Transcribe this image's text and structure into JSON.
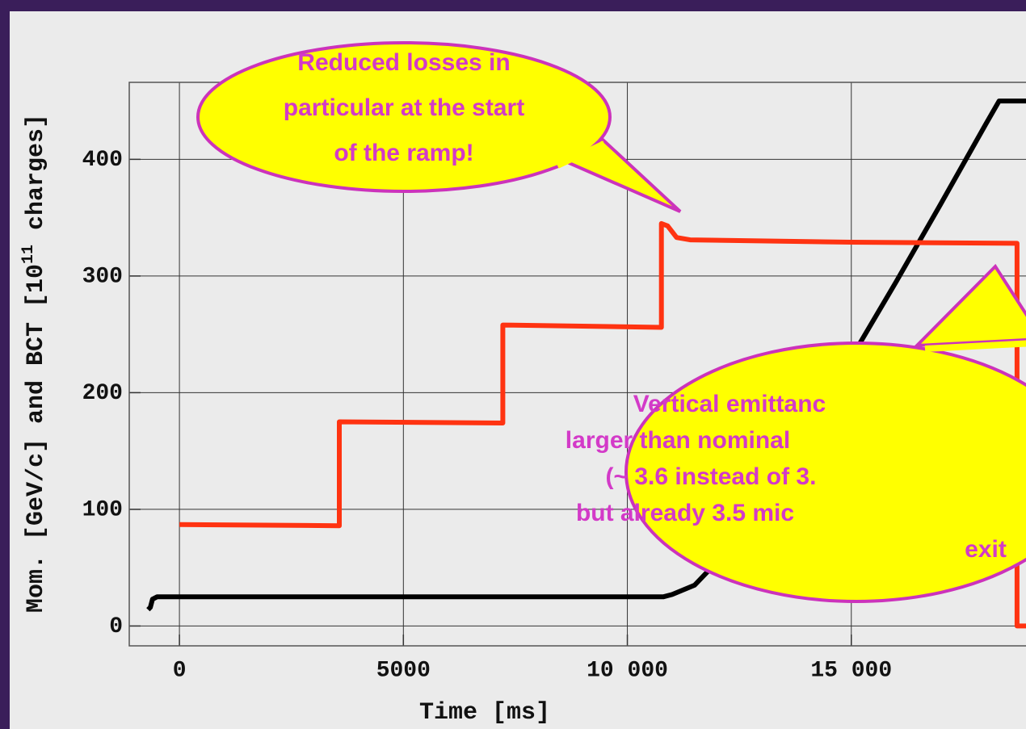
{
  "chart_data": {
    "type": "line",
    "xlabel": "Time  [ms]",
    "ylabel": [
      "Mom.  [GeV/c]  and  BCT  [10",
      "11",
      "  charges]"
    ],
    "xlim": [
      -1120,
      18900
    ],
    "ylim": [
      -17,
      466
    ],
    "xticks": [
      0,
      5000,
      {
        "value": 10000,
        "label": "10 000"
      },
      {
        "value": 15000,
        "label": "15 000"
      }
    ],
    "yticks": [
      0,
      100,
      200,
      300,
      400
    ],
    "grid": true,
    "series": [
      {
        "color": "#000000",
        "x": [
          -700,
          -650,
          -600,
          -500,
          0,
          5000,
          10000,
          10800,
          11000,
          11500,
          12000,
          12500,
          13000,
          14000,
          15000,
          16000,
          17000,
          18000,
          18300,
          18900
        ],
        "values": [
          14,
          16,
          23,
          25,
          25,
          25,
          25,
          25,
          27,
          35,
          55,
          90,
          120,
          175,
          230,
          295,
          362,
          430,
          450,
          450
        ]
      },
      {
        "color": "#ff3311",
        "x": [
          0,
          3570,
          3570,
          7220,
          7220,
          10760,
          10760,
          10900,
          11100,
          11400,
          15000,
          18700,
          18700,
          18900
        ],
        "values": [
          87,
          86,
          175,
          174,
          258,
          256,
          345,
          343,
          333,
          331,
          329,
          328,
          0,
          0
        ]
      }
    ],
    "annotations": [
      {
        "lines": [
          "Reduced losses in",
          "particular at the start",
          "of the ramp!"
        ]
      },
      {
        "lines": [
          "Vertical emittanc",
          "larger than nominal",
          "(~ 3.6 instead of 3.",
          "but already 3.5 mic",
          "exit"
        ]
      }
    ]
  }
}
